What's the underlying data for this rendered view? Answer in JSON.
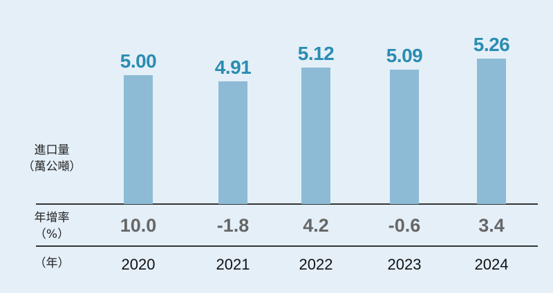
{
  "labels": {
    "volume_line1": "進口量",
    "volume_line2": "（萬公噸）",
    "growth_line1": "年增率",
    "growth_line2": "（%）",
    "year_unit": "（年）"
  },
  "chart_data": {
    "type": "bar",
    "categories": [
      "2020",
      "2021",
      "2022",
      "2023",
      "2024"
    ],
    "values": [
      5.0,
      4.91,
      5.12,
      5.09,
      5.26
    ],
    "value_labels": [
      "5.00",
      "4.91",
      "5.12",
      "5.09",
      "5.26"
    ],
    "growth_rates": [
      "10.0",
      "-1.8",
      "4.2",
      "-0.6",
      "3.4"
    ],
    "ylabel": "進口量（萬公噸）",
    "colors": {
      "bar": "#8dbbd6",
      "value_label": "#2b8cb1",
      "growth": "#666666",
      "background": "#e4eff8"
    }
  }
}
